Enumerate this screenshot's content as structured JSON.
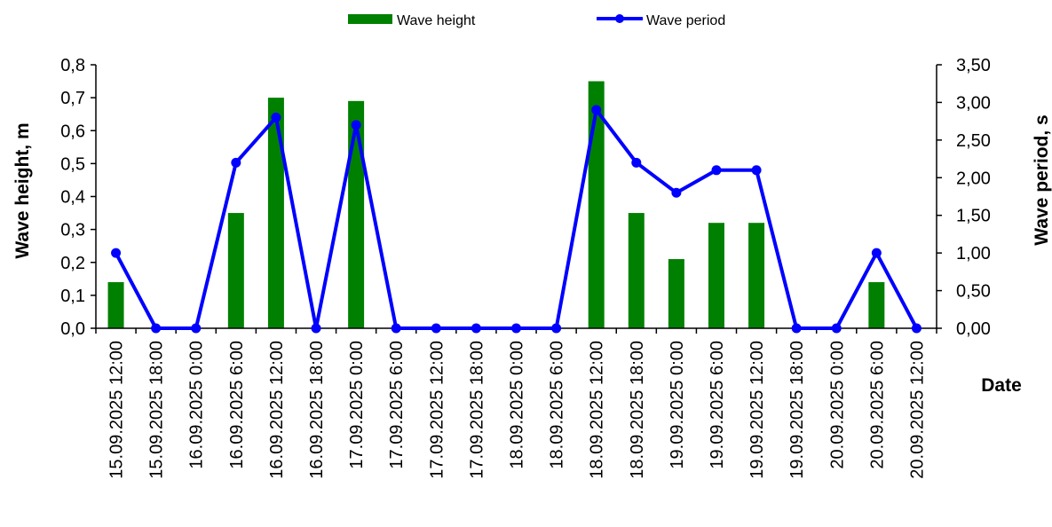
{
  "chart_data": {
    "type": "bar+line",
    "categories": [
      "15.09.2025 12:00",
      "15.09.2025 18:00",
      "16.09.2025 0:00",
      "16.09.2025 6:00",
      "16.09.2025 12:00",
      "16.09.2025 18:00",
      "17.09.2025 0:00",
      "17.09.2025 6:00",
      "17.09.2025 12:00",
      "17.09.2025 18:00",
      "18.09.2025 0:00",
      "18.09.2025 6:00",
      "18.09.2025 12:00",
      "18.09.2025 18:00",
      "19.09.2025 0:00",
      "19.09.2025 6:00",
      "19.09.2025 12:00",
      "19.09.2025 18:00",
      "20.09.2025 0:00",
      "20.09.2025 6:00",
      "20.09.2025 12:00"
    ],
    "series": [
      {
        "name": "Wave height",
        "type": "bar",
        "axis": "left",
        "color": "#008000",
        "values": [
          0.14,
          0,
          0,
          0.35,
          0.7,
          0,
          0.69,
          0,
          0,
          0,
          0,
          0,
          0.75,
          0.35,
          0.21,
          0.32,
          0.32,
          0,
          0,
          0.14,
          0
        ]
      },
      {
        "name": "Wave period",
        "type": "line",
        "axis": "right",
        "color": "#0000ff",
        "values": [
          1.0,
          0,
          0,
          2.2,
          2.8,
          0,
          2.7,
          0,
          0,
          0,
          0,
          0,
          2.9,
          2.2,
          1.8,
          2.1,
          2.1,
          0,
          0,
          1.0,
          0
        ]
      }
    ],
    "y_left": {
      "label": "Wave height, m",
      "ylim": [
        0,
        0.8
      ],
      "ticks": [
        "0,0",
        "0,1",
        "0,2",
        "0,3",
        "0,4",
        "0,5",
        "0,6",
        "0,7",
        "0,8"
      ]
    },
    "y_right": {
      "label": "Wave period, s",
      "ylim": [
        0,
        3.5
      ],
      "ticks": [
        "0,00",
        "0,50",
        "1,00",
        "1,50",
        "2,00",
        "2,50",
        "3,00",
        "3,50"
      ]
    },
    "xlabel": "Date",
    "grid": false,
    "legend_position": "top-center"
  }
}
